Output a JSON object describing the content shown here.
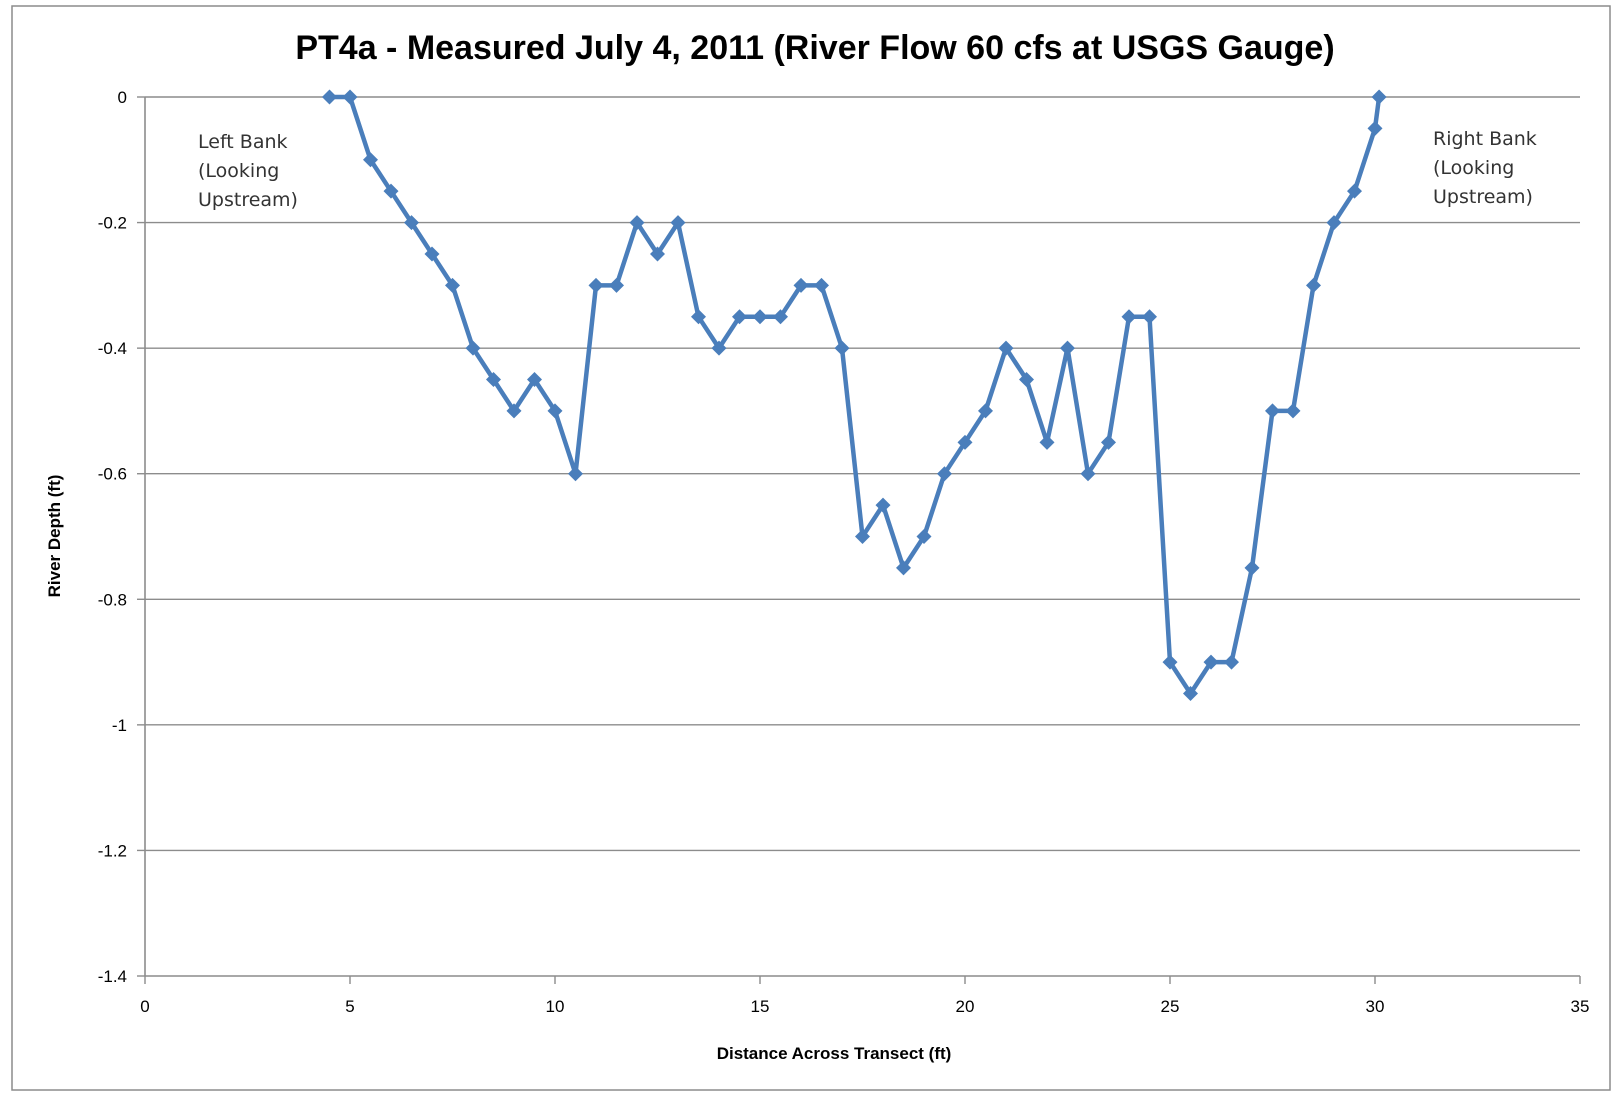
{
  "chart_data": {
    "type": "line",
    "title": "PT4a - Measured July 4, 2011 (River Flow 60 cfs at USGS Gauge)",
    "xlabel": "Distance Across Transect (ft)",
    "ylabel": "River Depth (ft)",
    "xlim": [
      0,
      35
    ],
    "ylim": [
      -1.4,
      0
    ],
    "x_ticks": [
      "0",
      "5",
      "10",
      "15",
      "20",
      "25",
      "30",
      "35"
    ],
    "y_ticks": [
      "0",
      "-0.2",
      "-0.4",
      "-0.6",
      "-0.8",
      "-1",
      "-1.2",
      "-1.4"
    ],
    "grid": "horizontal major gridlines",
    "legend": "none",
    "series_color": "#4a7ebb",
    "marker": "diamond",
    "annotations": [
      {
        "lines": [
          "Left Bank",
          "(Looking",
          "Upstream)"
        ],
        "position": "upper-left"
      },
      {
        "lines": [
          "Right Bank",
          "(Looking",
          "Upstream)"
        ],
        "position": "upper-right"
      }
    ],
    "series": [
      {
        "x": [
          4.5,
          5,
          5.5,
          6,
          6.5,
          7,
          7.5,
          8,
          8.5,
          9,
          9.5,
          10,
          10.5,
          11,
          11.5,
          12,
          12.5,
          13,
          13.5,
          14,
          14.5,
          15,
          15.5,
          16,
          16.5,
          17,
          17.5,
          18,
          18.5,
          19,
          19.5,
          20,
          20.5,
          21,
          21.5,
          22,
          22.5,
          23,
          23.5,
          24,
          24.5,
          25,
          25.5,
          26,
          26.5,
          27,
          27.5,
          28,
          28.5,
          29,
          29.5,
          30,
          30.1
        ],
        "y": [
          0,
          0,
          -0.1,
          -0.15,
          -0.2,
          -0.25,
          -0.3,
          -0.4,
          -0.45,
          -0.5,
          -0.45,
          -0.5,
          -0.6,
          -0.3,
          -0.3,
          -0.2,
          -0.25,
          -0.2,
          -0.35,
          -0.4,
          -0.35,
          -0.35,
          -0.35,
          -0.3,
          -0.3,
          -0.4,
          -0.7,
          -0.65,
          -0.75,
          -0.7,
          -0.6,
          -0.55,
          -0.5,
          -0.4,
          -0.45,
          -0.55,
          -0.4,
          -0.6,
          -0.55,
          -0.35,
          -0.35,
          -0.9,
          -0.95,
          -0.9,
          -0.9,
          -0.75,
          -0.5,
          -0.5,
          -0.3,
          -0.2,
          -0.15,
          -0.05,
          0
        ]
      }
    ]
  }
}
